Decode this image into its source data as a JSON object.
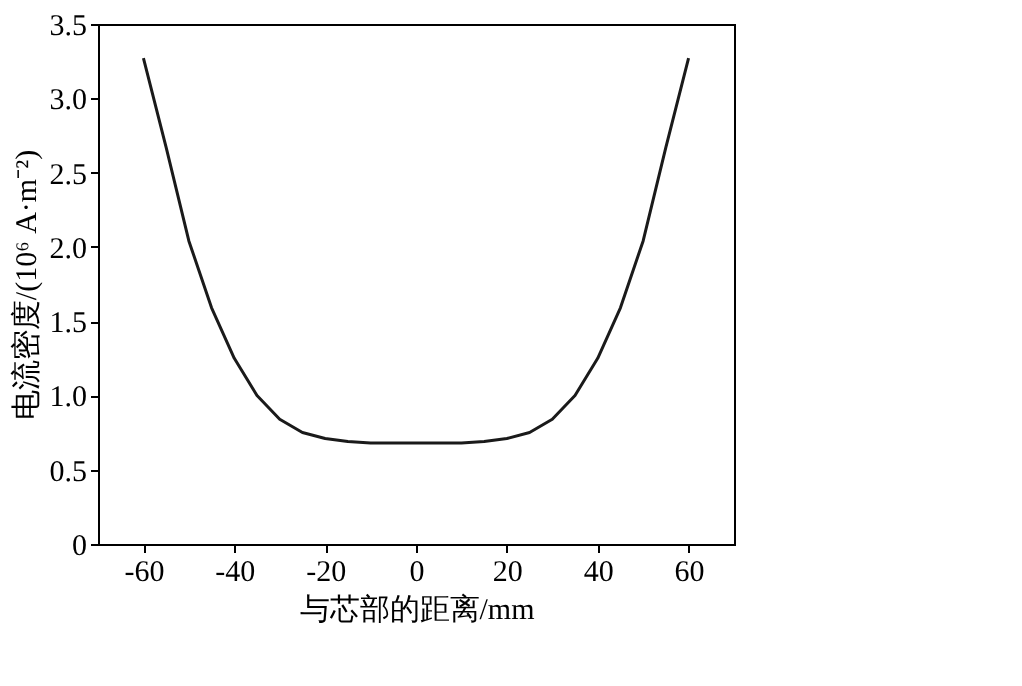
{
  "chart_data": {
    "type": "line",
    "xlabel": "与芯部的距离/mm",
    "ylabel": "电流密度/(10⁶ A·m⁻²)",
    "x": [
      -60,
      -55,
      -50,
      -45,
      -40,
      -35,
      -30,
      -25,
      -20,
      -15,
      -10,
      -5,
      0,
      5,
      10,
      15,
      20,
      25,
      30,
      35,
      40,
      45,
      50,
      55,
      60
    ],
    "series": [
      {
        "color": "#1a1a1a",
        "values": [
          3.27,
          2.67,
          2.04,
          1.59,
          1.25,
          1.0,
          0.84,
          0.75,
          0.71,
          0.69,
          0.68,
          0.68,
          0.68,
          0.68,
          0.68,
          0.69,
          0.71,
          0.75,
          0.84,
          1.0,
          1.25,
          1.59,
          2.04,
          2.67,
          3.27
        ]
      }
    ],
    "xlim": [
      -70,
      70
    ],
    "xticks": [
      -60,
      -40,
      -20,
      0,
      20,
      40,
      60
    ],
    "ylim": [
      0,
      3.5
    ],
    "yticks": [
      0,
      {
        "value": 0.5,
        "label": "0.5"
      },
      {
        "value": 1,
        "label": "1.0"
      },
      {
        "value": 1.5,
        "label": "1.5"
      },
      {
        "value": 2,
        "label": "2.0"
      },
      {
        "value": 2.5,
        "label": "2.5"
      },
      {
        "value": 3,
        "label": "3.0"
      },
      {
        "value": 3.5,
        "label": "3.5"
      }
    ],
    "grid": false,
    "legend": false,
    "marker": "none",
    "line_style": "solid"
  }
}
